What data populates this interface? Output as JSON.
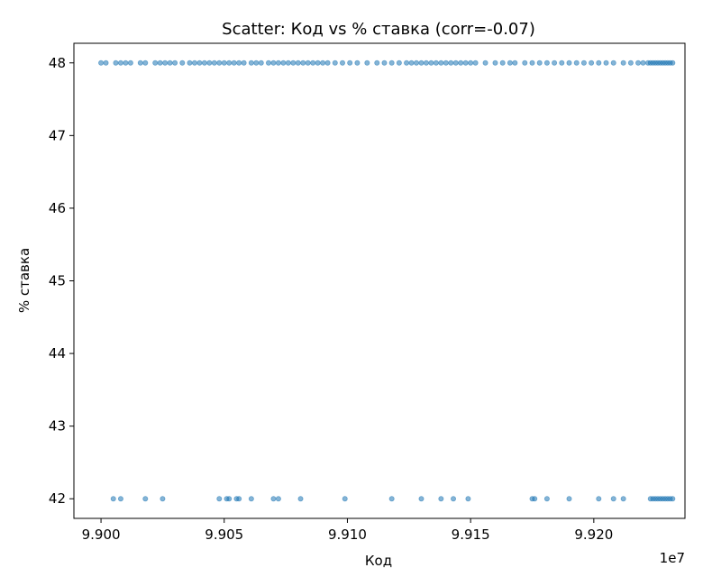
{
  "chart_data": {
    "type": "scatter",
    "title": "Scatter: Код vs % ставка (corr=-0.07)",
    "xlabel": "Код",
    "ylabel": "% ставка",
    "x_offset_label": "1e7",
    "xlim": [
      9.8989,
      9.9237
    ],
    "ylim": [
      41.73,
      48.27
    ],
    "xticks": [
      9.9,
      9.905,
      9.91,
      9.915,
      9.92
    ],
    "xtick_labels": [
      "9.900",
      "9.905",
      "9.910",
      "9.915",
      "9.920"
    ],
    "yticks": [
      42,
      43,
      44,
      45,
      46,
      47,
      48
    ],
    "ytick_labels": [
      "42",
      "43",
      "44",
      "45",
      "46",
      "47",
      "48"
    ],
    "grid": false,
    "marker_color": "#1f77b4",
    "series": [
      {
        "y": 48,
        "x": [
          9.9,
          9.9002,
          9.9006,
          9.9008,
          9.901,
          9.9012,
          9.9016,
          9.9018,
          9.9022,
          9.9024,
          9.9026,
          9.9028,
          9.903,
          9.9033,
          9.9036,
          9.9038,
          9.904,
          9.9042,
          9.9044,
          9.9046,
          9.9048,
          9.905,
          9.9052,
          9.9054,
          9.9056,
          9.9058,
          9.9061,
          9.9063,
          9.9065,
          9.9068,
          9.907,
          9.9072,
          9.9074,
          9.9076,
          9.9078,
          9.908,
          9.9082,
          9.9084,
          9.9086,
          9.9088,
          9.909,
          9.9092,
          9.9095,
          9.9098,
          9.9101,
          9.9104,
          9.9108,
          9.9112,
          9.9115,
          9.9118,
          9.9121,
          9.9124,
          9.9126,
          9.9128,
          9.913,
          9.9132,
          9.9134,
          9.9136,
          9.9138,
          9.914,
          9.9142,
          9.9144,
          9.9146,
          9.9148,
          9.915,
          9.9152,
          9.9156,
          9.916,
          9.9163,
          9.9166,
          9.9168,
          9.9172,
          9.9175,
          9.9178,
          9.9181,
          9.9184,
          9.9187,
          9.919,
          9.9193,
          9.9196,
          9.9199,
          9.9202,
          9.9205,
          9.9208,
          9.9212,
          9.9215,
          9.9218,
          9.922,
          9.9222,
          9.9223,
          9.9224,
          9.9225,
          9.9226,
          9.9227,
          9.9228,
          9.9229,
          9.923,
          9.9231,
          9.9232
        ]
      },
      {
        "y": 42,
        "x": [
          9.9005,
          9.9008,
          9.9018,
          9.9025,
          9.9048,
          9.9051,
          9.9052,
          9.9055,
          9.9056,
          9.9061,
          9.907,
          9.9072,
          9.9081,
          9.9099,
          9.9118,
          9.913,
          9.9138,
          9.9143,
          9.9149,
          9.9175,
          9.9176,
          9.9181,
          9.919,
          9.9202,
          9.9208,
          9.9212,
          9.9223,
          9.9224,
          9.9225,
          9.9226,
          9.9227,
          9.9228,
          9.9229,
          9.923,
          9.9231,
          9.9232
        ]
      }
    ]
  }
}
